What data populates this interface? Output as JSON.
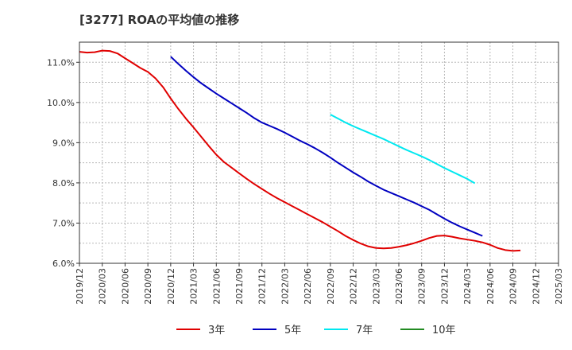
{
  "title": "[3277]  ROAの平均値の推移",
  "chart_data": {
    "type": "line",
    "title": "[3277]  ROAの平均値の推移",
    "xlabel": "",
    "ylabel": "",
    "ylim": [
      6.0,
      11.5
    ],
    "grid": true,
    "legend_position": "bottom",
    "x_ticks": [
      "2019/12",
      "2020/03",
      "2020/06",
      "2020/09",
      "2020/12",
      "2021/03",
      "2021/06",
      "2021/09",
      "2021/12",
      "2022/03",
      "2022/06",
      "2022/09",
      "2022/12",
      "2023/03",
      "2023/06",
      "2023/09",
      "2023/12",
      "2024/03",
      "2024/06",
      "2024/09",
      "2024/12",
      "2025/03"
    ],
    "y_ticks": [
      "6.0%",
      "7.0%",
      "8.0%",
      "9.0%",
      "10.0%",
      "11.0%"
    ],
    "y_tick_values": [
      6.0,
      7.0,
      8.0,
      9.0,
      10.0,
      11.0
    ],
    "series": [
      {
        "name": "3年",
        "color": "#e00000",
        "points": [
          [
            "2019/12",
            11.26
          ],
          [
            "2020/01",
            11.24
          ],
          [
            "2020/02",
            11.25
          ],
          [
            "2020/03",
            11.29
          ],
          [
            "2020/04",
            11.28
          ],
          [
            "2020/05",
            11.22
          ],
          [
            "2020/06",
            11.1
          ],
          [
            "2020/07",
            10.98
          ],
          [
            "2020/08",
            10.86
          ],
          [
            "2020/09",
            10.76
          ],
          [
            "2020/10",
            10.6
          ],
          [
            "2020/11",
            10.38
          ],
          [
            "2020/12",
            10.1
          ],
          [
            "2021/01",
            9.84
          ],
          [
            "2021/02",
            9.6
          ],
          [
            "2021/03",
            9.38
          ],
          [
            "2021/04",
            9.15
          ],
          [
            "2021/05",
            8.92
          ],
          [
            "2021/06",
            8.7
          ],
          [
            "2021/07",
            8.52
          ],
          [
            "2021/08",
            8.38
          ],
          [
            "2021/09",
            8.24
          ],
          [
            "2021/10",
            8.1
          ],
          [
            "2021/11",
            7.97
          ],
          [
            "2021/12",
            7.85
          ],
          [
            "2022/01",
            7.73
          ],
          [
            "2022/02",
            7.62
          ],
          [
            "2022/03",
            7.52
          ],
          [
            "2022/04",
            7.42
          ],
          [
            "2022/05",
            7.32
          ],
          [
            "2022/06",
            7.22
          ],
          [
            "2022/07",
            7.12
          ],
          [
            "2022/08",
            7.02
          ],
          [
            "2022/09",
            6.91
          ],
          [
            "2022/10",
            6.8
          ],
          [
            "2022/11",
            6.68
          ],
          [
            "2022/12",
            6.58
          ],
          [
            "2023/01",
            6.49
          ],
          [
            "2023/02",
            6.42
          ],
          [
            "2023/03",
            6.38
          ],
          [
            "2023/04",
            6.37
          ],
          [
            "2023/05",
            6.38
          ],
          [
            "2023/06",
            6.41
          ],
          [
            "2023/07",
            6.45
          ],
          [
            "2023/08",
            6.5
          ],
          [
            "2023/09",
            6.56
          ],
          [
            "2023/10",
            6.63
          ],
          [
            "2023/11",
            6.68
          ],
          [
            "2023/12",
            6.69
          ],
          [
            "2024/01",
            6.66
          ],
          [
            "2024/02",
            6.62
          ],
          [
            "2024/03",
            6.59
          ],
          [
            "2024/04",
            6.56
          ],
          [
            "2024/05",
            6.52
          ],
          [
            "2024/06",
            6.46
          ],
          [
            "2024/07",
            6.38
          ],
          [
            "2024/08",
            6.33
          ],
          [
            "2024/09",
            6.31
          ],
          [
            "2024/10",
            6.32
          ]
        ]
      },
      {
        "name": "5年",
        "color": "#0000c0",
        "points": [
          [
            "2020/12",
            11.14
          ],
          [
            "2021/01",
            10.96
          ],
          [
            "2021/02",
            10.79
          ],
          [
            "2021/03",
            10.63
          ],
          [
            "2021/04",
            10.48
          ],
          [
            "2021/05",
            10.35
          ],
          [
            "2021/06",
            10.22
          ],
          [
            "2021/07",
            10.1
          ],
          [
            "2021/08",
            9.98
          ],
          [
            "2021/09",
            9.86
          ],
          [
            "2021/10",
            9.74
          ],
          [
            "2021/11",
            9.61
          ],
          [
            "2021/12",
            9.5
          ],
          [
            "2022/01",
            9.42
          ],
          [
            "2022/02",
            9.34
          ],
          [
            "2022/03",
            9.25
          ],
          [
            "2022/04",
            9.15
          ],
          [
            "2022/05",
            9.05
          ],
          [
            "2022/06",
            8.96
          ],
          [
            "2022/07",
            8.86
          ],
          [
            "2022/08",
            8.75
          ],
          [
            "2022/09",
            8.63
          ],
          [
            "2022/10",
            8.5
          ],
          [
            "2022/11",
            8.38
          ],
          [
            "2022/12",
            8.26
          ],
          [
            "2023/01",
            8.15
          ],
          [
            "2023/02",
            8.03
          ],
          [
            "2023/03",
            7.93
          ],
          [
            "2023/04",
            7.83
          ],
          [
            "2023/05",
            7.75
          ],
          [
            "2023/06",
            7.67
          ],
          [
            "2023/07",
            7.59
          ],
          [
            "2023/08",
            7.51
          ],
          [
            "2023/09",
            7.42
          ],
          [
            "2023/10",
            7.33
          ],
          [
            "2023/11",
            7.22
          ],
          [
            "2023/12",
            7.11
          ],
          [
            "2024/01",
            7.01
          ],
          [
            "2024/02",
            6.92
          ],
          [
            "2024/03",
            6.84
          ],
          [
            "2024/04",
            6.76
          ],
          [
            "2024/05",
            6.68
          ]
        ]
      },
      {
        "name": "7年",
        "color": "#00e8f0",
        "points": [
          [
            "2022/09",
            9.7
          ],
          [
            "2022/10",
            9.6
          ],
          [
            "2022/11",
            9.5
          ],
          [
            "2022/12",
            9.41
          ],
          [
            "2023/01",
            9.33
          ],
          [
            "2023/02",
            9.25
          ],
          [
            "2023/03",
            9.17
          ],
          [
            "2023/04",
            9.09
          ],
          [
            "2023/05",
            9.0
          ],
          [
            "2023/06",
            8.91
          ],
          [
            "2023/07",
            8.82
          ],
          [
            "2023/08",
            8.74
          ],
          [
            "2023/09",
            8.66
          ],
          [
            "2023/10",
            8.57
          ],
          [
            "2023/11",
            8.47
          ],
          [
            "2023/12",
            8.37
          ],
          [
            "2024/01",
            8.28
          ],
          [
            "2024/02",
            8.19
          ],
          [
            "2024/03",
            8.1
          ],
          [
            "2024/04",
            7.99
          ]
        ]
      },
      {
        "name": "10年",
        "color": "#228b22",
        "points": []
      }
    ]
  }
}
